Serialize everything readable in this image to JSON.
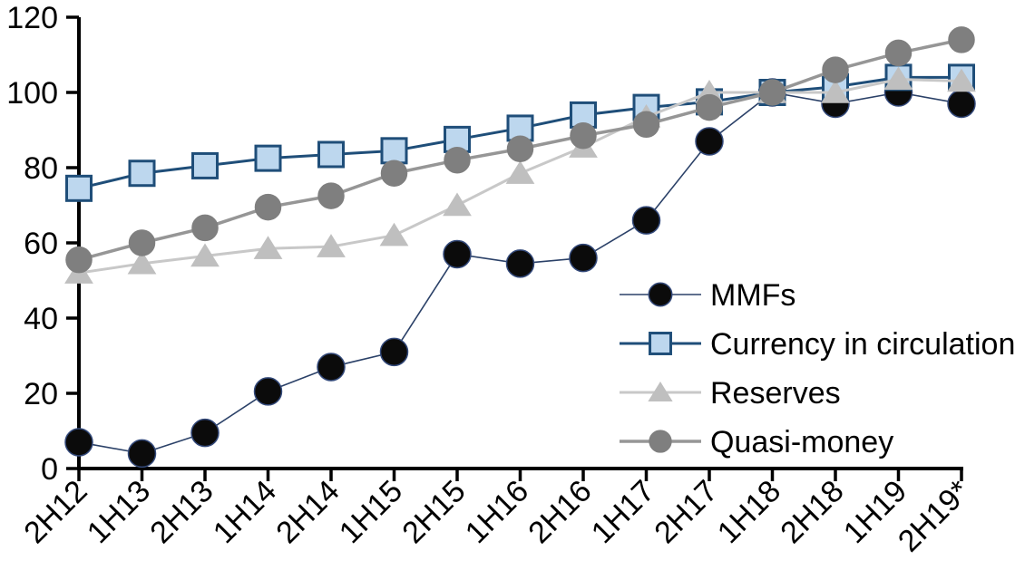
{
  "chart_data": {
    "type": "line",
    "title": "",
    "xlabel": "",
    "ylabel": "",
    "categories": [
      "2H12",
      "1H13",
      "2H13",
      "1H14",
      "2H14",
      "1H15",
      "2H15",
      "1H16",
      "2H16",
      "1H17",
      "2H17",
      "1H18",
      "2H18",
      "1H19",
      "2H19*"
    ],
    "series": [
      {
        "name": "MMFs",
        "marker": "circle",
        "marker_fill": "#0b0b0b",
        "marker_stroke": "#33497a",
        "line_color": "#2b4168",
        "line_width": 1.6,
        "marker_radius": 15,
        "values": [
          7,
          4,
          9.5,
          20.5,
          27,
          31,
          57,
          54.5,
          56,
          66,
          87,
          100,
          97,
          100,
          97
        ]
      },
      {
        "name": "Currency in circulation",
        "marker": "square",
        "marker_fill": "#bdd7ee",
        "marker_stroke": "#1f4e79",
        "line_color": "#1f4e79",
        "line_width": 3,
        "marker_radius": 13.5,
        "values": [
          74.5,
          78.5,
          80.5,
          82.5,
          83.5,
          84.5,
          87.5,
          90.5,
          94,
          96,
          97.5,
          100,
          101.5,
          104,
          104
        ]
      },
      {
        "name": "Reserves",
        "marker": "triangle",
        "marker_fill": "#bfbfbf",
        "marker_stroke": "#bfbfbf",
        "line_color": "#c8c8c8",
        "line_width": 3,
        "marker_radius": 14,
        "values": [
          52,
          54.5,
          56.5,
          58.5,
          59,
          62,
          70,
          78.5,
          85.5,
          93.5,
          100,
          100,
          100,
          103.5,
          103
        ]
      },
      {
        "name": "Quasi-money",
        "marker": "circle",
        "marker_fill": "#7f7f7f",
        "marker_stroke": "#7f7f7f",
        "line_color": "#969696",
        "line_width": 3.5,
        "marker_radius": 14,
        "values": [
          55.5,
          60,
          64,
          69.5,
          72.5,
          78.5,
          82,
          85,
          88.5,
          91.5,
          96,
          100,
          106,
          110.5,
          114
        ]
      }
    ],
    "ylim": [
      0,
      120
    ],
    "yticks": [
      0,
      20,
      40,
      60,
      80,
      100,
      120
    ],
    "grid": false,
    "legend_position": "inside-right",
    "axis_color": "#000000",
    "tick_label_color": "#000000",
    "background": "#ffffff"
  }
}
